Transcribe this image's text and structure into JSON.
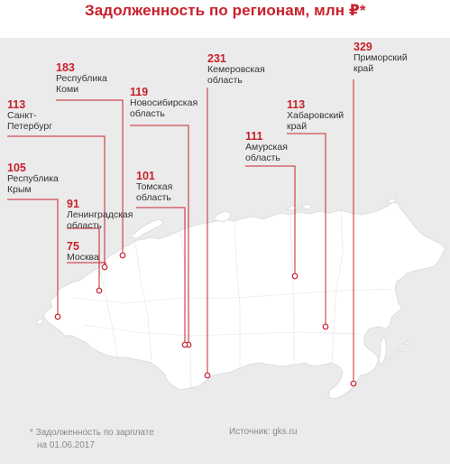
{
  "title": "Задолженность по регионам, млн ₽*",
  "colors": {
    "accent": "#c8202c",
    "background": "#ebebeb",
    "land": "#ffffff",
    "text": "#333333",
    "muted": "#888888"
  },
  "regions": [
    {
      "id": "komi",
      "value": "183",
      "name": "Республика\nКоми"
    },
    {
      "id": "novosibirsk",
      "value": "119",
      "name": "Новосибирская\nобласть"
    },
    {
      "id": "kemerovo",
      "value": "231",
      "name": "Кемеровская\nобласть"
    },
    {
      "id": "primorsky",
      "value": "329",
      "name": "Приморский\nкрай"
    },
    {
      "id": "spb",
      "value": "113",
      "name": "Санкт-\nПетербург"
    },
    {
      "id": "khabarovsk",
      "value": "113",
      "name": "Хабаровский\nкрай"
    },
    {
      "id": "amur",
      "value": "111",
      "name": "Амурская\nобласть"
    },
    {
      "id": "crimea",
      "value": "105",
      "name": "Республика\nКрым"
    },
    {
      "id": "tomsk",
      "value": "101",
      "name": "Томская\nобласть"
    },
    {
      "id": "leningrad",
      "value": "91",
      "name": "Ленинградская\nобласть"
    },
    {
      "id": "moscow",
      "value": "75",
      "name": "Москва"
    }
  ],
  "footnote": {
    "line1": "* Задолженность по зарплате",
    "line2": "на 01.06.2017"
  },
  "source": "Источник: gks.ru"
}
